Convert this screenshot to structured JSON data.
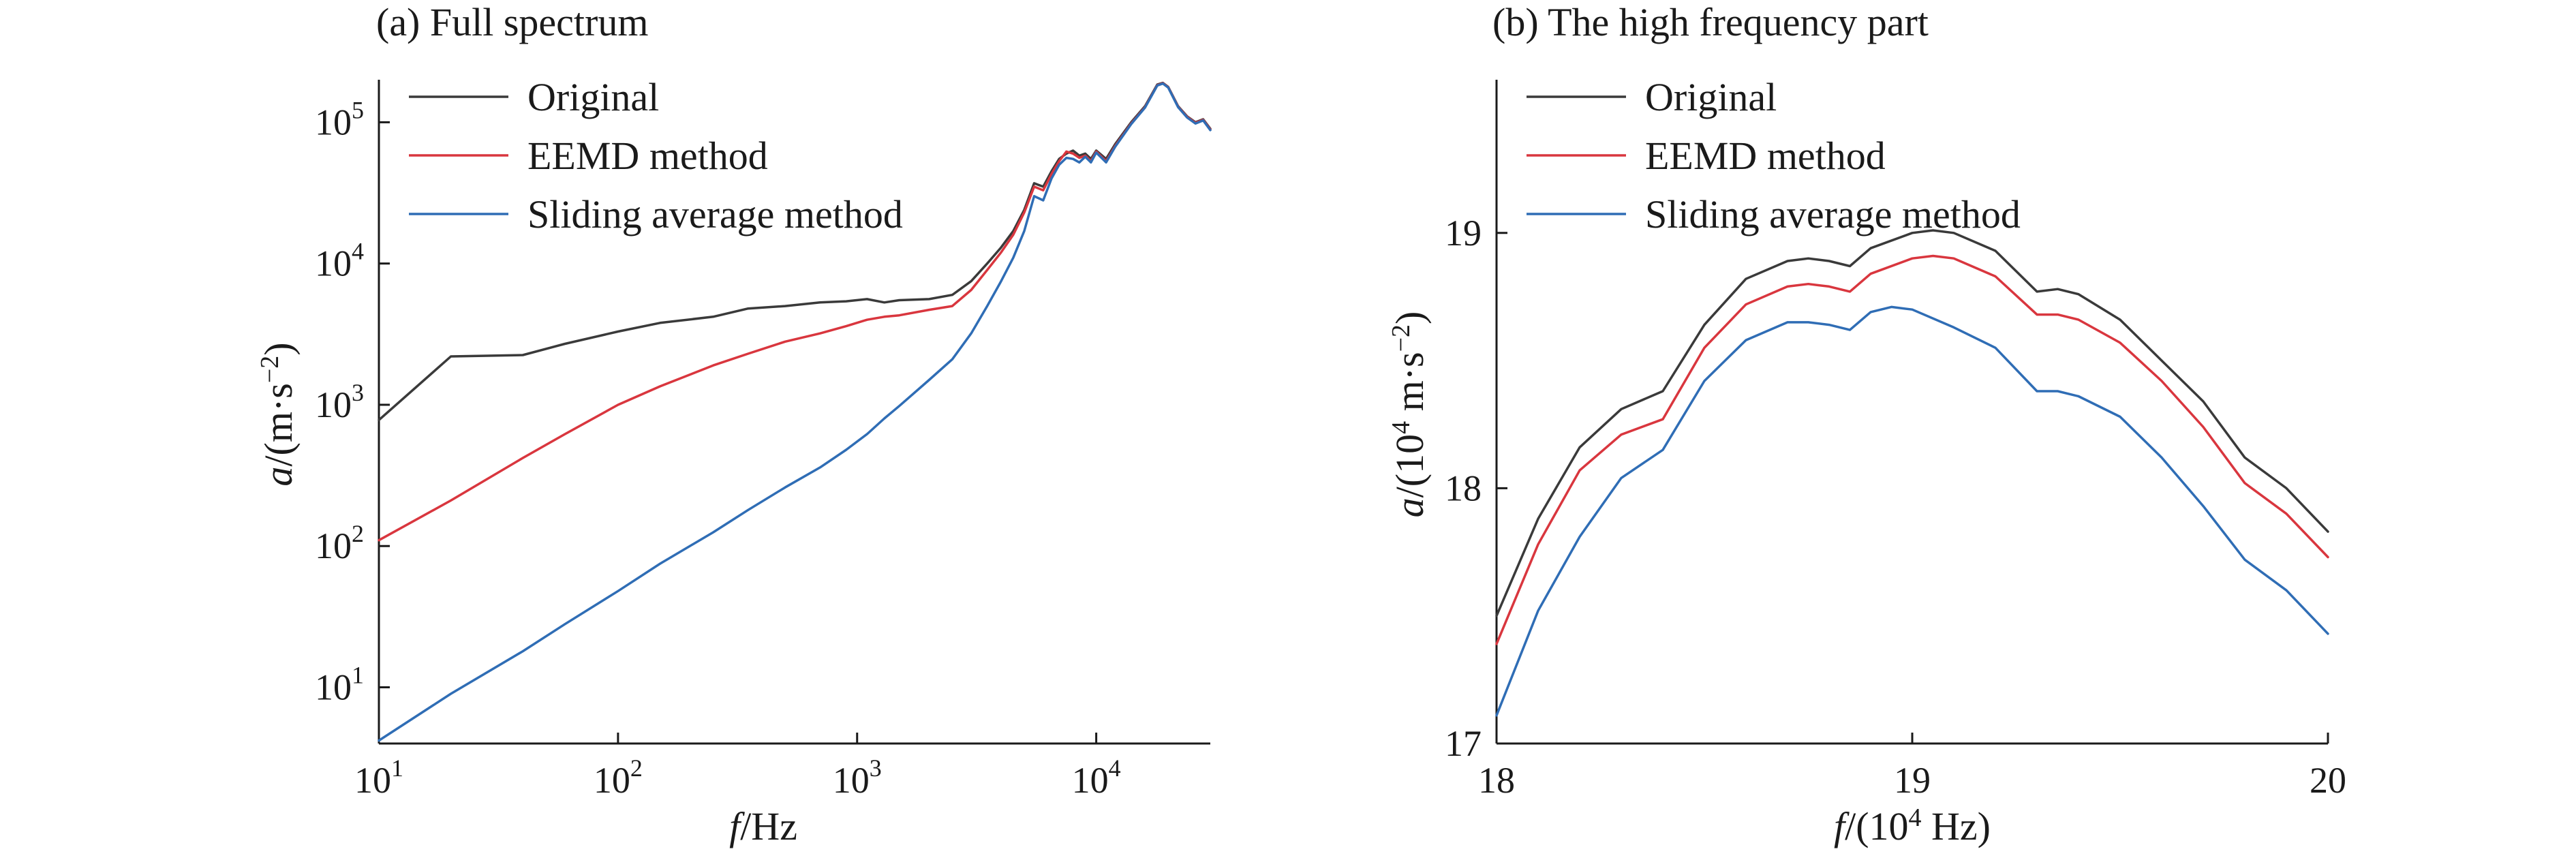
{
  "chart_data": [
    {
      "type": "line",
      "title": "(a) Full spectrum",
      "xlabel_italic": "f",
      "xlabel_rest": "/Hz",
      "ylabel_italic": "a",
      "ylabel_rest": "/(m·s",
      "ylabel_sup": "−2",
      "ylabel_close": ")",
      "xscale": "log",
      "yscale": "log",
      "xlim": [
        10,
        30000
      ],
      "ylim": [
        4,
        200000
      ],
      "xticks": [
        {
          "base": "10",
          "exp": "1",
          "value": 10
        },
        {
          "base": "10",
          "exp": "2",
          "value": 100
        },
        {
          "base": "10",
          "exp": "3",
          "value": 1000
        },
        {
          "base": "10",
          "exp": "4",
          "value": 10000
        }
      ],
      "yticks": [
        {
          "base": "10",
          "exp": "1",
          "value": 10
        },
        {
          "base": "10",
          "exp": "2",
          "value": 100
        },
        {
          "base": "10",
          "exp": "3",
          "value": 1000
        },
        {
          "base": "10",
          "exp": "4",
          "value": 10000
        },
        {
          "base": "10",
          "exp": "5",
          "value": 100000
        }
      ],
      "legend_position": "top-left",
      "grid": false,
      "series": [
        {
          "name": "Original",
          "color": "#3a3a3a",
          "points": [
            [
              10,
              780
            ],
            [
              20,
              2200
            ],
            [
              40,
              2250
            ],
            [
              60,
              2700
            ],
            [
              100,
              3300
            ],
            [
              150,
              3800
            ],
            [
              250,
              4200
            ],
            [
              350,
              4800
            ],
            [
              500,
              5000
            ],
            [
              700,
              5300
            ],
            [
              900,
              5400
            ],
            [
              1100,
              5600
            ],
            [
              1300,
              5300
            ],
            [
              1500,
              5500
            ],
            [
              2000,
              5600
            ],
            [
              2500,
              6000
            ],
            [
              3000,
              7500
            ],
            [
              3500,
              10000
            ],
            [
              4000,
              13000
            ],
            [
              4500,
              17000
            ],
            [
              5000,
              24000
            ],
            [
              5500,
              37000
            ],
            [
              6000,
              35000
            ],
            [
              6500,
              45000
            ],
            [
              7000,
              55000
            ],
            [
              7500,
              60000
            ],
            [
              8000,
              63000
            ],
            [
              8500,
              58000
            ],
            [
              9000,
              60000
            ],
            [
              9500,
              55000
            ],
            [
              10000,
              63000
            ],
            [
              11000,
              55000
            ],
            [
              12000,
              70000
            ],
            [
              14000,
              100000
            ],
            [
              16000,
              130000
            ],
            [
              18000,
              185000
            ],
            [
              19000,
              190000
            ],
            [
              20000,
              178000
            ],
            [
              22000,
              130000
            ],
            [
              24000,
              110000
            ],
            [
              26000,
              100000
            ],
            [
              28000,
              105000
            ],
            [
              30000,
              90000
            ]
          ]
        },
        {
          "name": "EEMD method",
          "color": "#d9363e",
          "points": [
            [
              10,
              110
            ],
            [
              20,
              210
            ],
            [
              40,
              420
            ],
            [
              60,
              620
            ],
            [
              100,
              1000
            ],
            [
              150,
              1350
            ],
            [
              250,
              1900
            ],
            [
              350,
              2300
            ],
            [
              500,
              2800
            ],
            [
              700,
              3200
            ],
            [
              900,
              3600
            ],
            [
              1100,
              4000
            ],
            [
              1300,
              4200
            ],
            [
              1500,
              4300
            ],
            [
              2000,
              4700
            ],
            [
              2500,
              5000
            ],
            [
              3000,
              6500
            ],
            [
              3500,
              9000
            ],
            [
              4000,
              12000
            ],
            [
              4500,
              16000
            ],
            [
              5000,
              23000
            ],
            [
              5500,
              35000
            ],
            [
              6000,
              33000
            ],
            [
              6500,
              43000
            ],
            [
              7000,
              53000
            ],
            [
              7500,
              62000
            ],
            [
              8000,
              60000
            ],
            [
              8500,
              56000
            ],
            [
              9000,
              58000
            ],
            [
              9500,
              53000
            ],
            [
              10000,
              62000
            ],
            [
              11000,
              53000
            ],
            [
              12000,
              68000
            ],
            [
              14000,
              98000
            ],
            [
              16000,
              128000
            ],
            [
              18000,
              183000
            ],
            [
              19000,
              189000
            ],
            [
              20000,
              177000
            ],
            [
              22000,
              129000
            ],
            [
              24000,
              109000
            ],
            [
              26000,
              99000
            ],
            [
              28000,
              104000
            ],
            [
              30000,
              89000
            ]
          ]
        },
        {
          "name": "Sliding average method",
          "color": "#2f6db5",
          "points": [
            [
              10,
              4.2
            ],
            [
              20,
              9
            ],
            [
              40,
              18
            ],
            [
              60,
              28
            ],
            [
              100,
              48
            ],
            [
              150,
              75
            ],
            [
              250,
              125
            ],
            [
              350,
              180
            ],
            [
              500,
              260
            ],
            [
              700,
              360
            ],
            [
              900,
              480
            ],
            [
              1100,
              620
            ],
            [
              1300,
              800
            ],
            [
              1500,
              980
            ],
            [
              2000,
              1500
            ],
            [
              2500,
              2100
            ],
            [
              3000,
              3200
            ],
            [
              3500,
              5000
            ],
            [
              4000,
              7500
            ],
            [
              4500,
              11000
            ],
            [
              5000,
              17000
            ],
            [
              5500,
              30000
            ],
            [
              6000,
              28000
            ],
            [
              6500,
              40000
            ],
            [
              7000,
              50000
            ],
            [
              7500,
              56000
            ],
            [
              8000,
              55000
            ],
            [
              8500,
              52000
            ],
            [
              9000,
              57000
            ],
            [
              9500,
              52000
            ],
            [
              10000,
              61000
            ],
            [
              11000,
              52000
            ],
            [
              12000,
              67000
            ],
            [
              14000,
              97000
            ],
            [
              16000,
              127000
            ],
            [
              18000,
              182000
            ],
            [
              19000,
              188000
            ],
            [
              20000,
              176000
            ],
            [
              22000,
              128000
            ],
            [
              24000,
              108000
            ],
            [
              26000,
              98000
            ],
            [
              28000,
              103000
            ],
            [
              30000,
              88000
            ]
          ]
        }
      ]
    },
    {
      "type": "line",
      "title": "(b) The high frequency part",
      "xlabel_italic": "f",
      "xlabel_rest": "/(10",
      "xlabel_sup": "4",
      "xlabel_close": " Hz)",
      "ylabel_italic": "a",
      "ylabel_rest": "/(10",
      "ylabel_sup": "4",
      "ylabel_mid": " m·s",
      "ylabel_sup2": "−2",
      "ylabel_close": ")",
      "xscale": "linear",
      "yscale": "linear",
      "xlim": [
        18,
        20
      ],
      "ylim": [
        17,
        19.6
      ],
      "xticks": [
        {
          "label": "18",
          "value": 18
        },
        {
          "label": "19",
          "value": 19
        },
        {
          "label": "20",
          "value": 20
        }
      ],
      "yticks": [
        {
          "label": "17",
          "value": 17
        },
        {
          "label": "18",
          "value": 18
        },
        {
          "label": "19",
          "value": 19
        }
      ],
      "legend_position": "top-left",
      "grid": false,
      "series": [
        {
          "name": "Original",
          "color": "#3a3a3a",
          "points": [
            [
              18.0,
              17.5
            ],
            [
              18.1,
              17.88
            ],
            [
              18.2,
              18.16
            ],
            [
              18.3,
              18.31
            ],
            [
              18.4,
              18.38
            ],
            [
              18.5,
              18.64
            ],
            [
              18.6,
              18.82
            ],
            [
              18.7,
              18.89
            ],
            [
              18.75,
              18.9
            ],
            [
              18.8,
              18.89
            ],
            [
              18.85,
              18.87
            ],
            [
              18.9,
              18.94
            ],
            [
              19.0,
              19.0
            ],
            [
              19.05,
              19.01
            ],
            [
              19.1,
              19.0
            ],
            [
              19.2,
              18.93
            ],
            [
              19.3,
              18.77
            ],
            [
              19.35,
              18.78
            ],
            [
              19.4,
              18.76
            ],
            [
              19.5,
              18.66
            ],
            [
              19.6,
              18.5
            ],
            [
              19.7,
              18.34
            ],
            [
              19.8,
              18.12
            ],
            [
              19.9,
              18.0
            ],
            [
              20.0,
              17.83
            ]
          ]
        },
        {
          "name": "EEMD method",
          "color": "#d9363e",
          "points": [
            [
              18.0,
              17.39
            ],
            [
              18.1,
              17.78
            ],
            [
              18.2,
              18.07
            ],
            [
              18.3,
              18.21
            ],
            [
              18.4,
              18.27
            ],
            [
              18.5,
              18.55
            ],
            [
              18.6,
              18.72
            ],
            [
              18.7,
              18.79
            ],
            [
              18.75,
              18.8
            ],
            [
              18.8,
              18.79
            ],
            [
              18.85,
              18.77
            ],
            [
              18.9,
              18.84
            ],
            [
              19.0,
              18.9
            ],
            [
              19.05,
              18.91
            ],
            [
              19.1,
              18.9
            ],
            [
              19.2,
              18.83
            ],
            [
              19.3,
              18.68
            ],
            [
              19.35,
              18.68
            ],
            [
              19.4,
              18.66
            ],
            [
              19.5,
              18.57
            ],
            [
              19.6,
              18.42
            ],
            [
              19.7,
              18.24
            ],
            [
              19.8,
              18.02
            ],
            [
              19.9,
              17.9
            ],
            [
              20.0,
              17.73
            ]
          ]
        },
        {
          "name": "Sliding average method",
          "color": "#2f6db5",
          "points": [
            [
              18.0,
              17.11
            ],
            [
              18.1,
              17.52
            ],
            [
              18.2,
              17.81
            ],
            [
              18.3,
              18.04
            ],
            [
              18.4,
              18.15
            ],
            [
              18.5,
              18.42
            ],
            [
              18.6,
              18.58
            ],
            [
              18.7,
              18.65
            ],
            [
              18.75,
              18.65
            ],
            [
              18.8,
              18.64
            ],
            [
              18.85,
              18.62
            ],
            [
              18.9,
              18.69
            ],
            [
              18.95,
              18.71
            ],
            [
              19.0,
              18.7
            ],
            [
              19.1,
              18.63
            ],
            [
              19.2,
              18.55
            ],
            [
              19.3,
              18.38
            ],
            [
              19.35,
              18.38
            ],
            [
              19.4,
              18.36
            ],
            [
              19.5,
              18.28
            ],
            [
              19.6,
              18.12
            ],
            [
              19.7,
              17.93
            ],
            [
              19.8,
              17.72
            ],
            [
              19.9,
              17.6
            ],
            [
              20.0,
              17.43
            ]
          ]
        }
      ]
    }
  ]
}
